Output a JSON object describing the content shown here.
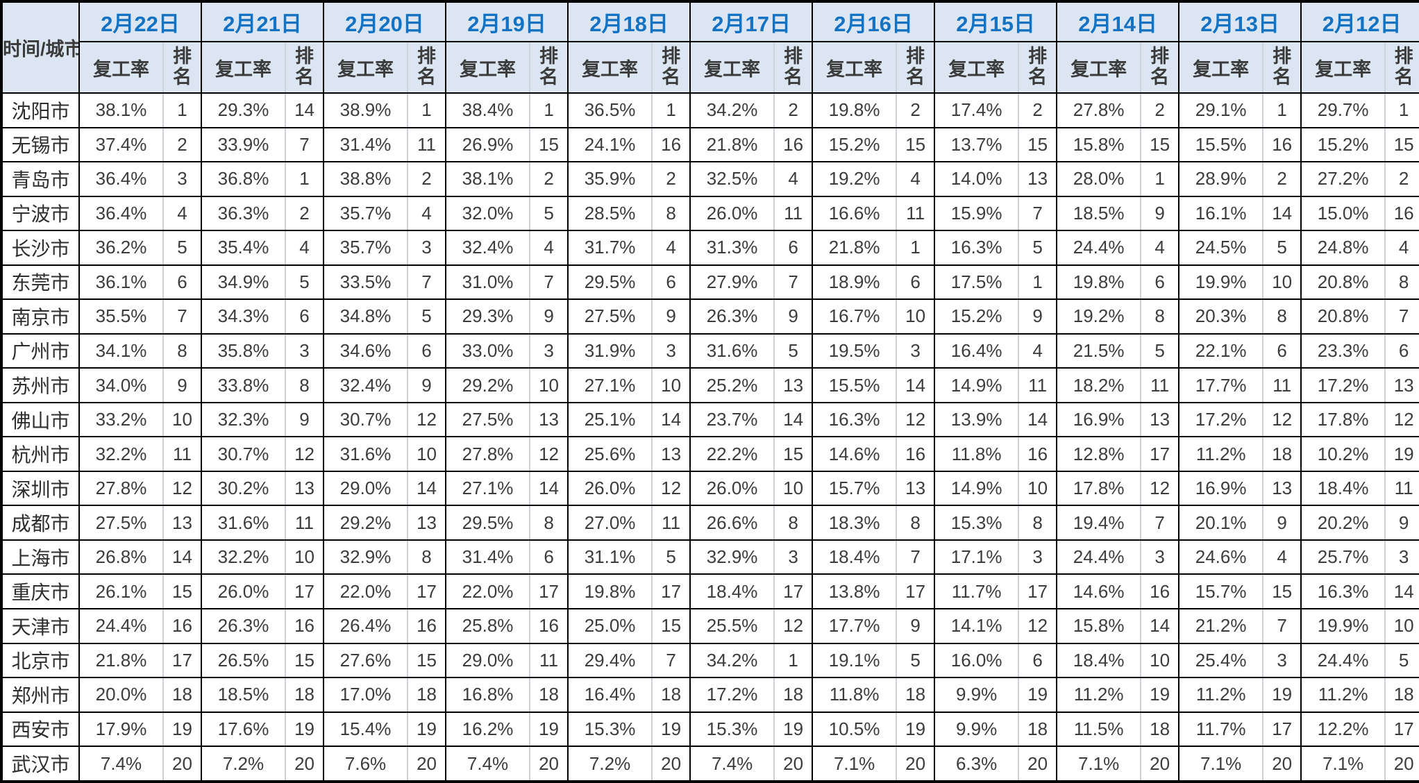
{
  "colors": {
    "header_bg": "#dce6f2",
    "date_text": "#1273c4",
    "header_text": "#3b3b3b",
    "body_text": "#3c3c3c",
    "border_black": "#000000",
    "divider_gray": "#cdd2d8"
  },
  "table": {
    "corner_label": "时间/城市",
    "rate_header": "复工率",
    "rank_header": "排名",
    "dates": [
      "2月22日",
      "2月21日",
      "2月20日",
      "2月19日",
      "2月18日",
      "2月17日",
      "2月16日",
      "2月15日",
      "2月14日",
      "2月13日",
      "2月12日"
    ],
    "rows": [
      {
        "city": "沈阳市",
        "values": [
          [
            "38.1%",
            "1"
          ],
          [
            "29.3%",
            "14"
          ],
          [
            "38.9%",
            "1"
          ],
          [
            "38.4%",
            "1"
          ],
          [
            "36.5%",
            "1"
          ],
          [
            "34.2%",
            "2"
          ],
          [
            "19.8%",
            "2"
          ],
          [
            "17.4%",
            "2"
          ],
          [
            "27.8%",
            "2"
          ],
          [
            "29.1%",
            "1"
          ],
          [
            "29.7%",
            "1"
          ]
        ]
      },
      {
        "city": "无锡市",
        "values": [
          [
            "37.4%",
            "2"
          ],
          [
            "33.9%",
            "7"
          ],
          [
            "31.4%",
            "11"
          ],
          [
            "26.9%",
            "15"
          ],
          [
            "24.1%",
            "16"
          ],
          [
            "21.8%",
            "16"
          ],
          [
            "15.2%",
            "15"
          ],
          [
            "13.7%",
            "15"
          ],
          [
            "15.8%",
            "15"
          ],
          [
            "15.5%",
            "16"
          ],
          [
            "15.2%",
            "15"
          ]
        ]
      },
      {
        "city": "青岛市",
        "values": [
          [
            "36.4%",
            "3"
          ],
          [
            "36.8%",
            "1"
          ],
          [
            "38.8%",
            "2"
          ],
          [
            "38.1%",
            "2"
          ],
          [
            "35.9%",
            "2"
          ],
          [
            "32.5%",
            "4"
          ],
          [
            "19.2%",
            "4"
          ],
          [
            "14.0%",
            "13"
          ],
          [
            "28.0%",
            "1"
          ],
          [
            "28.9%",
            "2"
          ],
          [
            "27.2%",
            "2"
          ]
        ]
      },
      {
        "city": "宁波市",
        "values": [
          [
            "36.4%",
            "4"
          ],
          [
            "36.3%",
            "2"
          ],
          [
            "35.7%",
            "4"
          ],
          [
            "32.0%",
            "5"
          ],
          [
            "28.5%",
            "8"
          ],
          [
            "26.0%",
            "11"
          ],
          [
            "16.6%",
            "11"
          ],
          [
            "15.9%",
            "7"
          ],
          [
            "18.5%",
            "9"
          ],
          [
            "16.1%",
            "14"
          ],
          [
            "15.0%",
            "16"
          ]
        ]
      },
      {
        "city": "长沙市",
        "values": [
          [
            "36.2%",
            "5"
          ],
          [
            "35.4%",
            "4"
          ],
          [
            "35.7%",
            "3"
          ],
          [
            "32.4%",
            "4"
          ],
          [
            "31.7%",
            "4"
          ],
          [
            "31.3%",
            "6"
          ],
          [
            "21.8%",
            "1"
          ],
          [
            "16.3%",
            "5"
          ],
          [
            "24.4%",
            "4"
          ],
          [
            "24.5%",
            "5"
          ],
          [
            "24.8%",
            "4"
          ]
        ]
      },
      {
        "city": "东莞市",
        "values": [
          [
            "36.1%",
            "6"
          ],
          [
            "34.9%",
            "5"
          ],
          [
            "33.5%",
            "7"
          ],
          [
            "31.0%",
            "7"
          ],
          [
            "29.5%",
            "6"
          ],
          [
            "27.9%",
            "7"
          ],
          [
            "18.9%",
            "6"
          ],
          [
            "17.5%",
            "1"
          ],
          [
            "19.8%",
            "6"
          ],
          [
            "19.9%",
            "10"
          ],
          [
            "20.8%",
            "8"
          ]
        ]
      },
      {
        "city": "南京市",
        "values": [
          [
            "35.5%",
            "7"
          ],
          [
            "34.3%",
            "6"
          ],
          [
            "34.8%",
            "5"
          ],
          [
            "29.3%",
            "9"
          ],
          [
            "27.5%",
            "9"
          ],
          [
            "26.3%",
            "9"
          ],
          [
            "16.7%",
            "10"
          ],
          [
            "15.2%",
            "9"
          ],
          [
            "19.2%",
            "8"
          ],
          [
            "20.3%",
            "8"
          ],
          [
            "20.8%",
            "7"
          ]
        ]
      },
      {
        "city": "广州市",
        "values": [
          [
            "34.1%",
            "8"
          ],
          [
            "35.8%",
            "3"
          ],
          [
            "34.6%",
            "6"
          ],
          [
            "33.0%",
            "3"
          ],
          [
            "31.9%",
            "3"
          ],
          [
            "31.6%",
            "5"
          ],
          [
            "19.5%",
            "3"
          ],
          [
            "16.4%",
            "4"
          ],
          [
            "21.5%",
            "5"
          ],
          [
            "22.1%",
            "6"
          ],
          [
            "23.3%",
            "6"
          ]
        ]
      },
      {
        "city": "苏州市",
        "values": [
          [
            "34.0%",
            "9"
          ],
          [
            "33.8%",
            "8"
          ],
          [
            "32.4%",
            "9"
          ],
          [
            "29.2%",
            "10"
          ],
          [
            "27.1%",
            "10"
          ],
          [
            "25.2%",
            "13"
          ],
          [
            "15.5%",
            "14"
          ],
          [
            "14.9%",
            "11"
          ],
          [
            "18.2%",
            "11"
          ],
          [
            "17.7%",
            "11"
          ],
          [
            "17.2%",
            "13"
          ]
        ]
      },
      {
        "city": "佛山市",
        "values": [
          [
            "33.2%",
            "10"
          ],
          [
            "32.3%",
            "9"
          ],
          [
            "30.7%",
            "12"
          ],
          [
            "27.5%",
            "13"
          ],
          [
            "25.1%",
            "14"
          ],
          [
            "23.7%",
            "14"
          ],
          [
            "16.3%",
            "12"
          ],
          [
            "13.9%",
            "14"
          ],
          [
            "16.9%",
            "13"
          ],
          [
            "17.2%",
            "12"
          ],
          [
            "17.8%",
            "12"
          ]
        ]
      },
      {
        "city": "杭州市",
        "values": [
          [
            "32.2%",
            "11"
          ],
          [
            "30.7%",
            "12"
          ],
          [
            "31.6%",
            "10"
          ],
          [
            "27.8%",
            "12"
          ],
          [
            "25.6%",
            "13"
          ],
          [
            "22.2%",
            "15"
          ],
          [
            "14.6%",
            "16"
          ],
          [
            "11.8%",
            "16"
          ],
          [
            "12.8%",
            "17"
          ],
          [
            "11.2%",
            "18"
          ],
          [
            "10.2%",
            "19"
          ]
        ]
      },
      {
        "city": "深圳市",
        "values": [
          [
            "27.8%",
            "12"
          ],
          [
            "30.2%",
            "13"
          ],
          [
            "29.0%",
            "14"
          ],
          [
            "27.1%",
            "14"
          ],
          [
            "26.0%",
            "12"
          ],
          [
            "26.0%",
            "10"
          ],
          [
            "15.7%",
            "13"
          ],
          [
            "14.9%",
            "10"
          ],
          [
            "17.8%",
            "12"
          ],
          [
            "16.9%",
            "13"
          ],
          [
            "18.4%",
            "11"
          ]
        ]
      },
      {
        "city": "成都市",
        "values": [
          [
            "27.5%",
            "13"
          ],
          [
            "31.6%",
            "11"
          ],
          [
            "29.2%",
            "13"
          ],
          [
            "29.5%",
            "8"
          ],
          [
            "27.0%",
            "11"
          ],
          [
            "26.6%",
            "8"
          ],
          [
            "18.3%",
            "8"
          ],
          [
            "15.3%",
            "8"
          ],
          [
            "19.4%",
            "7"
          ],
          [
            "20.1%",
            "9"
          ],
          [
            "20.2%",
            "9"
          ]
        ]
      },
      {
        "city": "上海市",
        "values": [
          [
            "26.8%",
            "14"
          ],
          [
            "32.2%",
            "10"
          ],
          [
            "32.9%",
            "8"
          ],
          [
            "31.4%",
            "6"
          ],
          [
            "31.1%",
            "5"
          ],
          [
            "32.9%",
            "3"
          ],
          [
            "18.4%",
            "7"
          ],
          [
            "17.1%",
            "3"
          ],
          [
            "24.4%",
            "3"
          ],
          [
            "24.6%",
            "4"
          ],
          [
            "25.7%",
            "3"
          ]
        ]
      },
      {
        "city": "重庆市",
        "values": [
          [
            "26.1%",
            "15"
          ],
          [
            "26.0%",
            "17"
          ],
          [
            "22.0%",
            "17"
          ],
          [
            "22.0%",
            "17"
          ],
          [
            "19.8%",
            "17"
          ],
          [
            "18.4%",
            "17"
          ],
          [
            "13.8%",
            "17"
          ],
          [
            "11.7%",
            "17"
          ],
          [
            "14.6%",
            "16"
          ],
          [
            "15.7%",
            "15"
          ],
          [
            "16.3%",
            "14"
          ]
        ]
      },
      {
        "city": "天津市",
        "values": [
          [
            "24.4%",
            "16"
          ],
          [
            "26.3%",
            "16"
          ],
          [
            "26.4%",
            "16"
          ],
          [
            "25.8%",
            "16"
          ],
          [
            "25.0%",
            "15"
          ],
          [
            "25.5%",
            "12"
          ],
          [
            "17.7%",
            "9"
          ],
          [
            "14.1%",
            "12"
          ],
          [
            "15.8%",
            "14"
          ],
          [
            "21.2%",
            "7"
          ],
          [
            "19.9%",
            "10"
          ]
        ]
      },
      {
        "city": "北京市",
        "values": [
          [
            "21.8%",
            "17"
          ],
          [
            "26.5%",
            "15"
          ],
          [
            "27.6%",
            "15"
          ],
          [
            "29.0%",
            "11"
          ],
          [
            "29.4%",
            "7"
          ],
          [
            "34.2%",
            "1"
          ],
          [
            "19.1%",
            "5"
          ],
          [
            "16.0%",
            "6"
          ],
          [
            "18.4%",
            "10"
          ],
          [
            "25.4%",
            "3"
          ],
          [
            "24.4%",
            "5"
          ]
        ]
      },
      {
        "city": "郑州市",
        "values": [
          [
            "20.0%",
            "18"
          ],
          [
            "18.5%",
            "18"
          ],
          [
            "17.0%",
            "18"
          ],
          [
            "16.8%",
            "18"
          ],
          [
            "16.4%",
            "18"
          ],
          [
            "17.2%",
            "18"
          ],
          [
            "11.8%",
            "18"
          ],
          [
            "9.9%",
            "19"
          ],
          [
            "11.2%",
            "19"
          ],
          [
            "11.2%",
            "19"
          ],
          [
            "11.2%",
            "18"
          ]
        ]
      },
      {
        "city": "西安市",
        "values": [
          [
            "17.9%",
            "19"
          ],
          [
            "17.6%",
            "19"
          ],
          [
            "15.4%",
            "19"
          ],
          [
            "16.2%",
            "19"
          ],
          [
            "15.3%",
            "19"
          ],
          [
            "15.3%",
            "19"
          ],
          [
            "10.5%",
            "19"
          ],
          [
            "9.9%",
            "18"
          ],
          [
            "11.5%",
            "18"
          ],
          [
            "11.7%",
            "17"
          ],
          [
            "12.2%",
            "17"
          ]
        ]
      },
      {
        "city": "武汉市",
        "values": [
          [
            "7.4%",
            "20"
          ],
          [
            "7.2%",
            "20"
          ],
          [
            "7.6%",
            "20"
          ],
          [
            "7.4%",
            "20"
          ],
          [
            "7.2%",
            "20"
          ],
          [
            "7.4%",
            "20"
          ],
          [
            "7.1%",
            "20"
          ],
          [
            "6.3%",
            "20"
          ],
          [
            "7.1%",
            "20"
          ],
          [
            "7.1%",
            "20"
          ],
          [
            "7.1%",
            "20"
          ]
        ]
      }
    ]
  }
}
